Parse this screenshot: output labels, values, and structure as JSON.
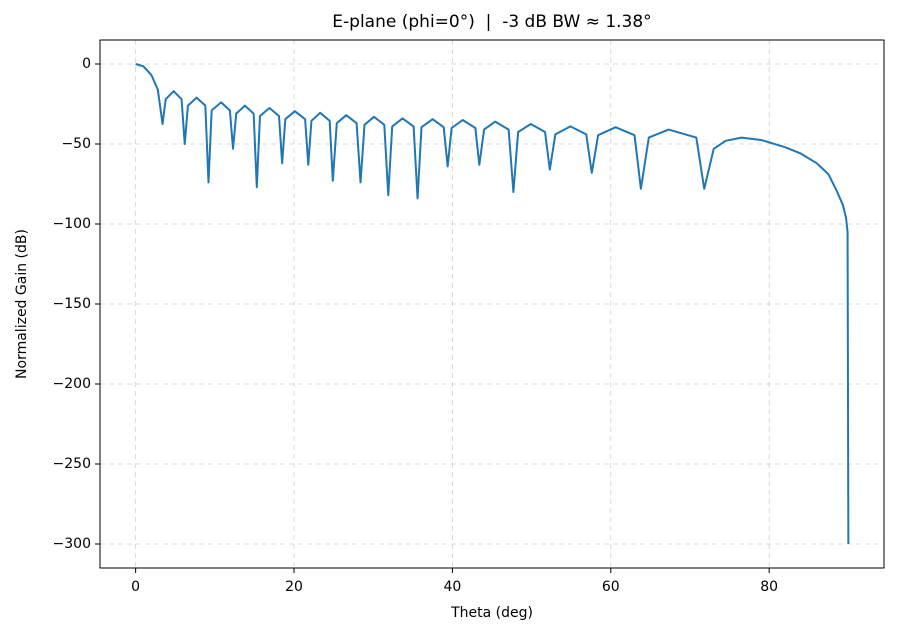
{
  "chart_data": {
    "type": "line",
    "title": "E-plane (phi=0°)  |  -3 dB BW ≈ 1.38°",
    "x_label": "Theta (deg)",
    "y_label": "Normalized Gain (dB)",
    "xlim": [
      -4.5,
      94.5
    ],
    "ylim": [
      -315,
      15
    ],
    "xticks": [
      0,
      20,
      40,
      60,
      80
    ],
    "yticks": [
      {
        "value": 0,
        "label": "0"
      },
      {
        "value": -50,
        "label": "−50"
      },
      {
        "value": -100,
        "label": "−100"
      },
      {
        "value": -150,
        "label": "−150"
      },
      {
        "value": -200,
        "label": "−200"
      },
      {
        "value": -250,
        "label": "−250"
      },
      {
        "value": -300,
        "label": "−300"
      }
    ],
    "grid": true,
    "series": [
      {
        "color": "#1f77b4",
        "x": [
          0,
          1,
          2,
          2.8,
          3.4,
          3.8,
          4.8,
          5.8,
          6.2,
          6.6,
          7.7,
          8.8,
          9.2,
          9.6,
          10.8,
          11.9,
          12.3,
          12.7,
          13.8,
          14.9,
          15.3,
          15.7,
          16.9,
          18.1,
          18.5,
          18.9,
          20.1,
          21.4,
          21.8,
          22.2,
          23.3,
          24.5,
          24.9,
          25.4,
          26.6,
          27.9,
          28.4,
          28.9,
          30.1,
          31.4,
          31.9,
          32.4,
          33.7,
          35.1,
          35.6,
          36.1,
          37.5,
          38.9,
          39.4,
          39.9,
          41.3,
          42.9,
          43.4,
          44.0,
          45.4,
          47.1,
          47.7,
          48.3,
          49.9,
          51.7,
          52.3,
          53.0,
          54.9,
          56.9,
          57.6,
          58.4,
          60.6,
          63.0,
          63.8,
          64.8,
          67.3,
          70.8,
          71.8,
          73,
          74.5,
          76.5,
          79,
          82,
          84,
          86,
          87.5,
          88.5,
          89.3,
          89.7,
          89.9,
          90
        ],
        "values": [
          0,
          -1.5,
          -7,
          -16,
          -37.5,
          -22,
          -17,
          -22,
          -50,
          -26,
          -21,
          -26,
          -74,
          -29,
          -24,
          -29,
          -53,
          -31,
          -26,
          -31,
          -77,
          -32.5,
          -27.5,
          -32.5,
          -62,
          -34.5,
          -29.5,
          -34.5,
          -63,
          -35.5,
          -30.5,
          -35.5,
          -73,
          -37,
          -32,
          -37,
          -74,
          -38,
          -33,
          -38,
          -82,
          -39,
          -34,
          -39,
          -84,
          -39.5,
          -34.5,
          -39.5,
          -64,
          -40,
          -35,
          -40,
          -63,
          -41,
          -36,
          -41,
          -80,
          -42.5,
          -37.5,
          -42.5,
          -66,
          -44,
          -39,
          -44,
          -68,
          -44.5,
          -39.5,
          -44.5,
          -78,
          -46,
          -41,
          -46,
          -78,
          -53,
          -48,
          -46,
          -47.5,
          -52,
          -56,
          -62,
          -69,
          -79,
          -88,
          -96,
          -105,
          -300
        ]
      }
    ]
  }
}
